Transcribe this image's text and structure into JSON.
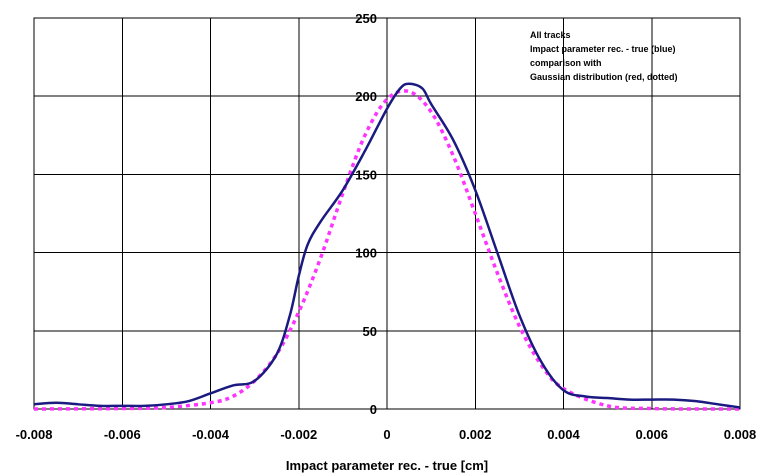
{
  "chart_data": {
    "type": "line",
    "title": "",
    "xlabel": "Impact parameter rec. - true [cm]",
    "ylabel": "",
    "xlim": [
      -0.008,
      0.008
    ],
    "ylim": [
      0,
      250
    ],
    "x_ticks": [
      -0.008,
      -0.006,
      -0.004,
      -0.002,
      0,
      0.002,
      0.004,
      0.006,
      0.008
    ],
    "x_tick_labels": [
      "-0.008",
      "-0.006",
      "-0.004",
      "-0.002",
      "0",
      "0.002",
      "0.004",
      "0.006",
      "0.008"
    ],
    "y_ticks": [
      0,
      50,
      100,
      150,
      200,
      250
    ],
    "y_tick_labels": [
      "0",
      "50",
      "100",
      "150",
      "200",
      "250"
    ],
    "grid": true,
    "annotation": [
      "All tracks",
      "Impact parameter rec. - true (blue)",
      "comparison with",
      "Gaussian distribution (red, dotted)"
    ],
    "series": [
      {
        "color": "#1a1a80",
        "style": "solid",
        "x": [
          -0.008,
          -0.0075,
          -0.007,
          -0.0065,
          -0.006,
          -0.0055,
          -0.005,
          -0.0045,
          -0.004,
          -0.0035,
          -0.003,
          -0.0025,
          -0.0022,
          -0.002,
          -0.0018,
          -0.0015,
          -0.001,
          -0.0005,
          0,
          0.0003,
          0.0005,
          0.0008,
          0.001,
          0.0015,
          0.002,
          0.0025,
          0.003,
          0.0035,
          0.004,
          0.0045,
          0.005,
          0.0055,
          0.006,
          0.0065,
          0.007,
          0.0075,
          0.008
        ],
        "y": [
          3,
          4,
          3,
          2,
          2,
          2,
          3,
          5,
          10,
          15,
          18,
          35,
          60,
          85,
          105,
          120,
          140,
          165,
          192,
          205,
          208,
          205,
          195,
          172,
          140,
          100,
          60,
          30,
          12,
          8,
          7,
          6,
          6,
          6,
          5,
          3,
          1
        ]
      },
      {
        "color": "#ff33ff",
        "style": "dotted",
        "x": [
          -0.008,
          -0.006,
          -0.005,
          -0.004,
          -0.0035,
          -0.003,
          -0.0025,
          -0.002,
          -0.0015,
          -0.001,
          -0.0005,
          0,
          0.0005,
          0.001,
          0.0015,
          0.002,
          0.0025,
          0.003,
          0.0035,
          0.004,
          0.005,
          0.006,
          0.007,
          0.008
        ],
        "y": [
          0,
          0.3,
          1,
          4,
          8,
          18,
          35,
          62,
          97,
          138,
          175,
          198,
          203,
          190,
          162,
          125,
          87,
          53,
          28,
          13,
          2,
          0.3,
          0,
          0
        ]
      }
    ]
  }
}
